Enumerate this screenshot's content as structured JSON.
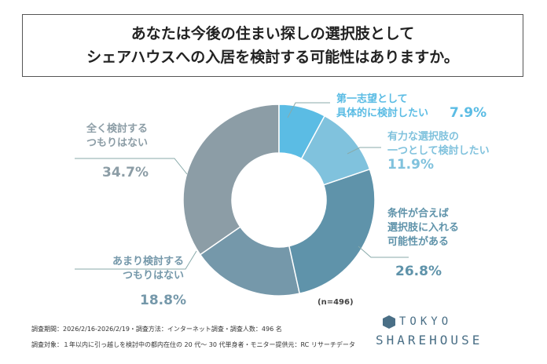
{
  "chart_data": {
    "type": "donut",
    "title": "あなたは今後の住まい探しの選択肢として\nシェアハウスへの入居を検討する可能性はありますか。",
    "categories": [
      "第一志望として\n具体的に検討したい",
      "有力な選択肢の\n一つとして検討したい",
      "条件が合えば\n選択肢に入れる\n可能性がある",
      "あまり検討する\nつもりはない",
      "全く検討する\nつもりはない"
    ],
    "values": [
      7.9,
      11.9,
      26.8,
      18.8,
      34.7
    ],
    "value_labels": [
      "7.9%",
      "11.9%",
      "26.8%",
      "18.8%",
      "34.7%"
    ],
    "colors": [
      "#5bbce4",
      "#80c2dd",
      "#5f93aa",
      "#7598aa",
      "#8c9da6"
    ],
    "note": "(n=496)"
  },
  "footer": {
    "lines": [
      "調査期間：2026/2/16-2026/2/19・調査方法：インターネット調査・調査人数：496 名",
      "調査対象：１年以内に引っ越しを検討中の都内在住の 20 代～ 30 代単身者・モニター提供元：RC リサーチデータ"
    ]
  },
  "logo": {
    "top": "TOKYO",
    "bottom": "SHAREHOUSE"
  }
}
